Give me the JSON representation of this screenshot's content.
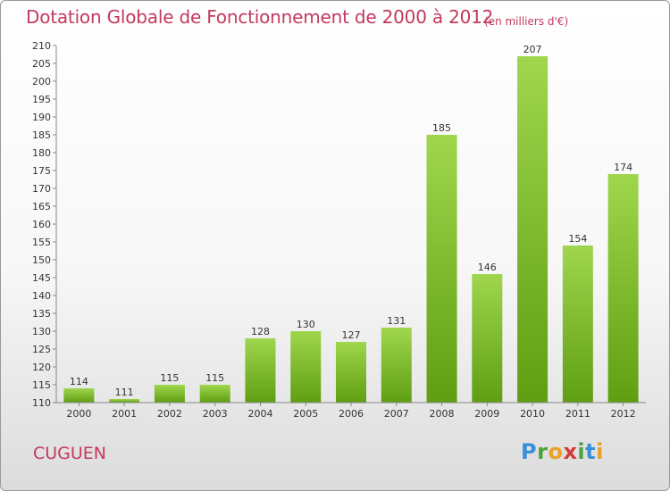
{
  "header": {
    "title": "Dotation Globale de Fonctionnement de 2000 à 2012",
    "unit": "(en milliers d'€)"
  },
  "footer": {
    "commune": "CUGUEN",
    "logo": {
      "letters": [
        "P",
        "r",
        "o",
        "x",
        "i",
        "t",
        "i"
      ],
      "colors": [
        "#3a8fd8",
        "#4aa43c",
        "#e9a228",
        "#d63a3a",
        "#4aa43c",
        "#3a8fd8",
        "#e9a228"
      ]
    }
  },
  "chart_data": {
    "type": "bar",
    "categories": [
      "2000",
      "2001",
      "2002",
      "2003",
      "2004",
      "2005",
      "2006",
      "2007",
      "2008",
      "2009",
      "2010",
      "2011",
      "2012"
    ],
    "values": [
      114,
      111,
      115,
      115,
      128,
      130,
      127,
      131,
      185,
      146,
      207,
      154,
      174
    ],
    "ylim": [
      110,
      210
    ],
    "ytick_step": 5,
    "grid": false,
    "colors": {
      "bar_top": "#9fd64e",
      "bar_bottom": "#5f9e12",
      "axis": "#888888",
      "text": "#c4395f"
    }
  }
}
